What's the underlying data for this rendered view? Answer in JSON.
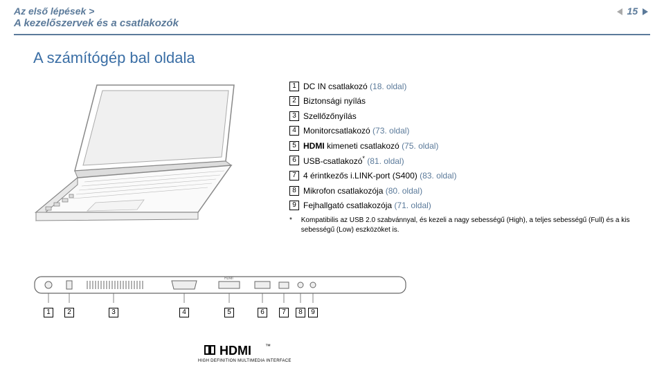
{
  "breadcrumb": "Az első lépések >",
  "section": "A kezelőszervek és a csatlakozók",
  "page_number": "15",
  "title": "A számítógép bal oldala",
  "items": [
    {
      "n": "1",
      "text": "DC IN csatlakozó ",
      "link": "(18. oldal)"
    },
    {
      "n": "2",
      "text": "Biztonsági nyílás",
      "link": ""
    },
    {
      "n": "3",
      "text": "Szellőzőnyílás",
      "link": ""
    },
    {
      "n": "4",
      "text": "Monitorcsatlakozó ",
      "link": "(73. oldal)"
    },
    {
      "n": "5",
      "html": "<b>HDMI</b> kimeneti csatlakozó ",
      "link": "(75. oldal)"
    },
    {
      "n": "6",
      "html": "USB-csatlakozó<span class='sup'>*</span> ",
      "link": "(81. oldal)"
    },
    {
      "n": "7",
      "text": "4 érintkezős i.LINK-port (S400) ",
      "link": "(83. oldal)"
    },
    {
      "n": "8",
      "text": "Mikrofon csatlakozója ",
      "link": "(80. oldal)"
    },
    {
      "n": "9",
      "text": "Fejhallgató csatlakozója ",
      "link": "(71. oldal)"
    }
  ],
  "footnote_mark": "*",
  "footnote": "Kompatibilis az USB 2.0 szabvánnyal, és kezeli a nagy sebességű (High), a teljes sebességű (Full) és a kis sebességű (Low) eszközöket is.",
  "hdmi": "HDMI",
  "hdmi_tm": "™",
  "hdmi_sub": "HIGH DEFINITION MULTIMEDIA INTERFACE",
  "callouts": [
    "1",
    "2",
    "3",
    "4",
    "5",
    "6",
    "7",
    "8",
    "9"
  ],
  "colors": {
    "blue": "#3a6ea5",
    "linkblue": "#5b7a9a"
  }
}
